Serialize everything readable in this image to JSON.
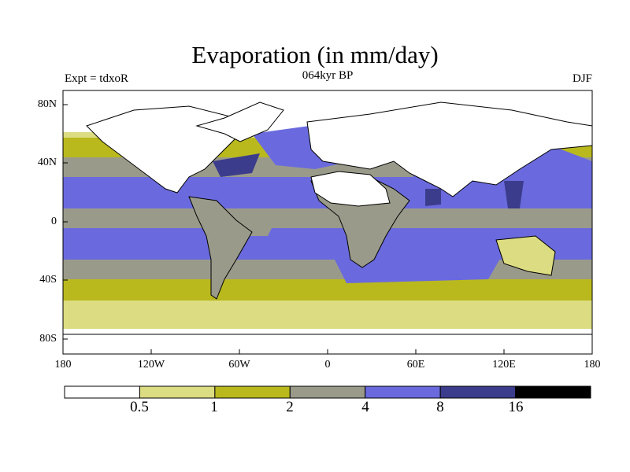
{
  "title": "Evaporation (in mm/day)",
  "experiment": "Expt = tdxoR",
  "period": "064kyr BP",
  "season": "DJF",
  "lat_labels": [
    "80N",
    "40N",
    "0",
    "40S",
    "80S"
  ],
  "lon_labels": [
    "180",
    "120W",
    "60W",
    "0",
    "60E",
    "120E",
    "180"
  ],
  "colorbar": {
    "colors": [
      "#ffffff",
      "#dcdc82",
      "#b9b91e",
      "#9a9a8a",
      "#6a6ade",
      "#3c3c8c",
      "#000000"
    ],
    "labels": [
      "0.5",
      "1",
      "2",
      "4",
      "8",
      "16"
    ]
  }
}
